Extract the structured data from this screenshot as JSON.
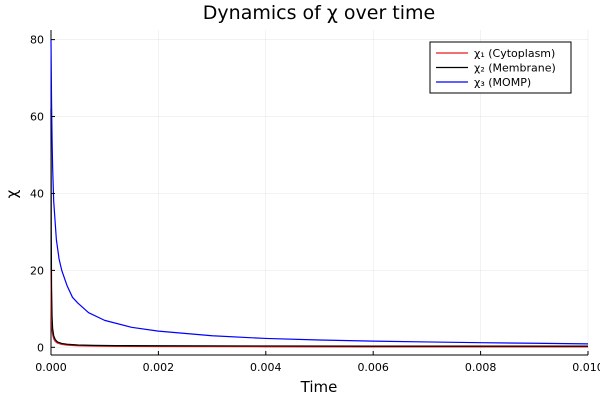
{
  "chart_data": {
    "type": "line",
    "title": "Dynamics of χ over time",
    "xlabel": "Time",
    "ylabel": "χ",
    "xlim": [
      0,
      0.01
    ],
    "ylim": [
      -2,
      82.5
    ],
    "xticks": [
      0,
      0.002,
      0.004,
      0.006,
      0.008,
      0.01
    ],
    "xtick_labels": [
      "0.000",
      "0.002",
      "0.004",
      "0.006",
      "0.008",
      "0.010"
    ],
    "yticks": [
      0,
      20,
      40,
      60,
      80
    ],
    "ytick_labels": [
      "0",
      "20",
      "40",
      "60",
      "80"
    ],
    "grid": true,
    "legend_position": "top-right",
    "series": [
      {
        "name": "χ₁ (Cytoplasm)",
        "color": "#e31a1c",
        "x": [
          0,
          5e-06,
          1e-05,
          2e-05,
          3e-05,
          5e-05,
          8e-05,
          0.00012,
          0.0002,
          0.0003,
          0.0005,
          0.0008,
          0.0012,
          0.002,
          0.004,
          0.006,
          0.008,
          0.01
        ],
        "y": [
          20,
          10,
          7,
          4.5,
          3.3,
          2.2,
          1.5,
          1.1,
          0.75,
          0.55,
          0.4,
          0.3,
          0.25,
          0.2,
          0.15,
          0.12,
          0.1,
          0.1
        ]
      },
      {
        "name": "χ₂ (Membrane)",
        "color": "#000000",
        "x": [
          0,
          5e-06,
          1e-05,
          2e-05,
          3e-05,
          5e-05,
          8e-05,
          0.00012,
          0.0002,
          0.0003,
          0.0005,
          0.0008,
          0.0012,
          0.002,
          0.004,
          0.006,
          0.008,
          0.01
        ],
        "y": [
          62,
          30,
          16,
          8,
          5,
          3,
          2,
          1.4,
          1.0,
          0.8,
          0.6,
          0.5,
          0.45,
          0.4,
          0.35,
          0.3,
          0.3,
          0.3
        ]
      },
      {
        "name": "χ₃ (MOMP)",
        "color": "#0000ff",
        "x": [
          0,
          1e-05,
          2e-05,
          3e-05,
          5e-05,
          0.0001,
          0.00015,
          0.0002,
          0.0003,
          0.0004,
          0.0005,
          0.0007,
          0.001,
          0.0015,
          0.002,
          0.003,
          0.004,
          0.005,
          0.006,
          0.007,
          0.008,
          0.009,
          0.01
        ],
        "y": [
          80,
          64,
          54,
          47,
          38,
          28,
          23,
          20,
          16,
          13,
          11.5,
          9,
          7,
          5.2,
          4.2,
          3.0,
          2.3,
          1.9,
          1.6,
          1.4,
          1.2,
          1.05,
          0.9
        ]
      }
    ]
  }
}
